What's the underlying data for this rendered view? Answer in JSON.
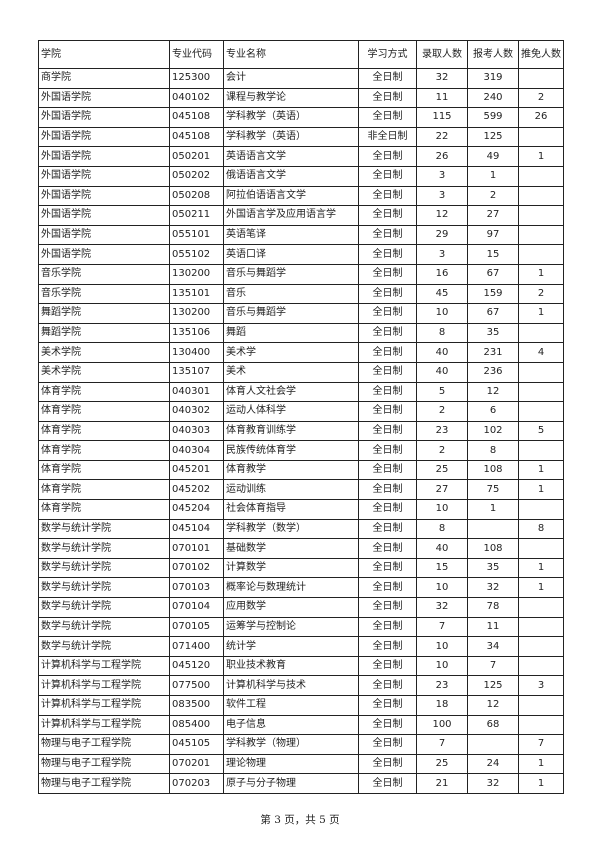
{
  "table": {
    "headers": [
      "学院",
      "专业代码",
      "专业名称",
      "学习方式",
      "录取人数",
      "报考人数",
      "推免人数"
    ],
    "rows": [
      [
        "商学院",
        "125300",
        "会计",
        "全日制",
        "32",
        "319",
        ""
      ],
      [
        "外国语学院",
        "040102",
        "课程与教学论",
        "全日制",
        "11",
        "240",
        "2"
      ],
      [
        "外国语学院",
        "045108",
        "学科教学（英语）",
        "全日制",
        "115",
        "599",
        "26"
      ],
      [
        "外国语学院",
        "045108",
        "学科教学（英语）",
        "非全日制",
        "22",
        "125",
        ""
      ],
      [
        "外国语学院",
        "050201",
        "英语语言文学",
        "全日制",
        "26",
        "49",
        "1"
      ],
      [
        "外国语学院",
        "050202",
        "俄语语言文学",
        "全日制",
        "3",
        "1",
        ""
      ],
      [
        "外国语学院",
        "050208",
        "阿拉伯语语言文学",
        "全日制",
        "3",
        "2",
        ""
      ],
      [
        "外国语学院",
        "050211",
        "外国语言学及应用语言学",
        "全日制",
        "12",
        "27",
        ""
      ],
      [
        "外国语学院",
        "055101",
        "英语笔译",
        "全日制",
        "29",
        "97",
        ""
      ],
      [
        "外国语学院",
        "055102",
        "英语口译",
        "全日制",
        "3",
        "15",
        ""
      ],
      [
        "音乐学院",
        "130200",
        "音乐与舞蹈学",
        "全日制",
        "16",
        "67",
        "1"
      ],
      [
        "音乐学院",
        "135101",
        "音乐",
        "全日制",
        "45",
        "159",
        "2"
      ],
      [
        "舞蹈学院",
        "130200",
        "音乐与舞蹈学",
        "全日制",
        "10",
        "67",
        "1"
      ],
      [
        "舞蹈学院",
        "135106",
        "舞蹈",
        "全日制",
        "8",
        "35",
        ""
      ],
      [
        "美术学院",
        "130400",
        "美术学",
        "全日制",
        "40",
        "231",
        "4"
      ],
      [
        "美术学院",
        "135107",
        "美术",
        "全日制",
        "40",
        "236",
        ""
      ],
      [
        "体育学院",
        "040301",
        "体育人文社会学",
        "全日制",
        "5",
        "12",
        ""
      ],
      [
        "体育学院",
        "040302",
        "运动人体科学",
        "全日制",
        "2",
        "6",
        ""
      ],
      [
        "体育学院",
        "040303",
        "体育教育训练学",
        "全日制",
        "23",
        "102",
        "5"
      ],
      [
        "体育学院",
        "040304",
        "民族传统体育学",
        "全日制",
        "2",
        "8",
        ""
      ],
      [
        "体育学院",
        "045201",
        "体育教学",
        "全日制",
        "25",
        "108",
        "1"
      ],
      [
        "体育学院",
        "045202",
        "运动训练",
        "全日制",
        "27",
        "75",
        "1"
      ],
      [
        "体育学院",
        "045204",
        "社会体育指导",
        "全日制",
        "10",
        "1",
        ""
      ],
      [
        "数学与统计学院",
        "045104",
        "学科教学（数学）",
        "全日制",
        "8",
        "",
        "8"
      ],
      [
        "数学与统计学院",
        "070101",
        "基础数学",
        "全日制",
        "40",
        "108",
        ""
      ],
      [
        "数学与统计学院",
        "070102",
        "计算数学",
        "全日制",
        "15",
        "35",
        "1"
      ],
      [
        "数学与统计学院",
        "070103",
        "概率论与数理统计",
        "全日制",
        "10",
        "32",
        "1"
      ],
      [
        "数学与统计学院",
        "070104",
        "应用数学",
        "全日制",
        "32",
        "78",
        ""
      ],
      [
        "数学与统计学院",
        "070105",
        "运筹学与控制论",
        "全日制",
        "7",
        "11",
        ""
      ],
      [
        "数学与统计学院",
        "071400",
        "统计学",
        "全日制",
        "10",
        "34",
        ""
      ],
      [
        "计算机科学与工程学院",
        "045120",
        "职业技术教育",
        "全日制",
        "10",
        "7",
        ""
      ],
      [
        "计算机科学与工程学院",
        "077500",
        "计算机科学与技术",
        "全日制",
        "23",
        "125",
        "3"
      ],
      [
        "计算机科学与工程学院",
        "083500",
        "软件工程",
        "全日制",
        "18",
        "12",
        ""
      ],
      [
        "计算机科学与工程学院",
        "085400",
        "电子信息",
        "全日制",
        "100",
        "68",
        ""
      ],
      [
        "物理与电子工程学院",
        "045105",
        "学科教学（物理）",
        "全日制",
        "7",
        "",
        "7"
      ],
      [
        "物理与电子工程学院",
        "070201",
        "理论物理",
        "全日制",
        "25",
        "24",
        "1"
      ],
      [
        "物理与电子工程学院",
        "070203",
        "原子与分子物理",
        "全日制",
        "21",
        "32",
        "1"
      ]
    ]
  },
  "footer": "第 3 页，共 5 页"
}
